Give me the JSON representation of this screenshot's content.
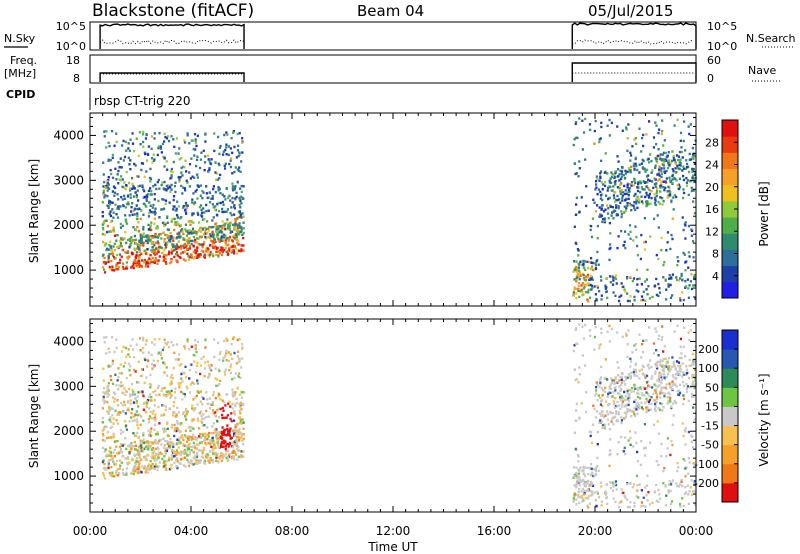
{
  "header": {
    "station": "Blackstone (fitACF)",
    "beam": "Beam 04",
    "date": "05/Jul/2015"
  },
  "labels": {
    "nsky": "N.Sky",
    "nsearch": "N.Search",
    "freq_line1": "Freq.",
    "freq_line2": "[MHz]",
    "nave": "Nave",
    "cpid": "CPID",
    "cpid_value": "rbsp CT-trig 220"
  },
  "noise_panel": {
    "left_ticks": [
      "10^5",
      "10^0"
    ],
    "right_ticks": [
      "10^5",
      "10^0"
    ]
  },
  "freq_panel": {
    "left_ticks": [
      "18",
      "8"
    ],
    "right_ticks": [
      "60",
      "0"
    ]
  },
  "colors": {
    "power_scale": [
      "#1f1fe6",
      "#1e3ea8",
      "#2e6e9a",
      "#2f8a6f",
      "#4fae4a",
      "#8fca3c",
      "#f0c020",
      "#f5a028",
      "#f07818",
      "#e83c10",
      "#e01010"
    ],
    "velocity_scale": [
      "#e01010",
      "#f07818",
      "#f5a028",
      "#f7c050",
      "#c8c8c8",
      "#6cc644",
      "#2e8b57",
      "#2858b0",
      "#1a2fd0"
    ]
  },
  "chart_data": [
    {
      "type": "heatmap",
      "title": "",
      "xlabel": "Time UT",
      "ylabel": "Slant Range [km]",
      "x_tick_labels": [
        "00:00",
        "04:00",
        "08:00",
        "12:00",
        "16:00",
        "20:00",
        "00:00"
      ],
      "x_ticks_hours": [
        0,
        4,
        8,
        12,
        16,
        20,
        24
      ],
      "xlim_hours": [
        0,
        24
      ],
      "y_tick_labels": [
        "1000",
        "2000",
        "3000",
        "4000"
      ],
      "y_ticks": [
        1000,
        2000,
        3000,
        4000
      ],
      "ylim": [
        200,
        4500
      ],
      "colorbar": {
        "label": "Power [dB]",
        "tick_labels": [
          "4",
          "8",
          "12",
          "16",
          "20",
          "24",
          "28"
        ],
        "range": [
          0,
          32
        ]
      },
      "observation_periods_hours": [
        [
          0.4,
          6.1
        ],
        [
          19.1,
          24.0
        ]
      ]
    },
    {
      "type": "heatmap",
      "title": "",
      "xlabel": "Time UT",
      "ylabel": "Slant Range [km]",
      "x_tick_labels": [
        "00:00",
        "04:00",
        "08:00",
        "12:00",
        "16:00",
        "20:00",
        "00:00"
      ],
      "x_ticks_hours": [
        0,
        4,
        8,
        12,
        16,
        20,
        24
      ],
      "xlim_hours": [
        0,
        24
      ],
      "y_tick_labels": [
        "1000",
        "2000",
        "3000",
        "4000"
      ],
      "y_ticks": [
        1000,
        2000,
        3000,
        4000
      ],
      "ylim": [
        200,
        4500
      ],
      "colorbar": {
        "label": "Velocity [m s⁻¹]",
        "tick_labels": [
          "-200",
          "-100",
          "-50",
          "-15",
          "15",
          "50",
          "100",
          "200"
        ]
      },
      "observation_periods_hours": [
        [
          0.4,
          6.1
        ],
        [
          19.1,
          24.0
        ]
      ]
    }
  ]
}
